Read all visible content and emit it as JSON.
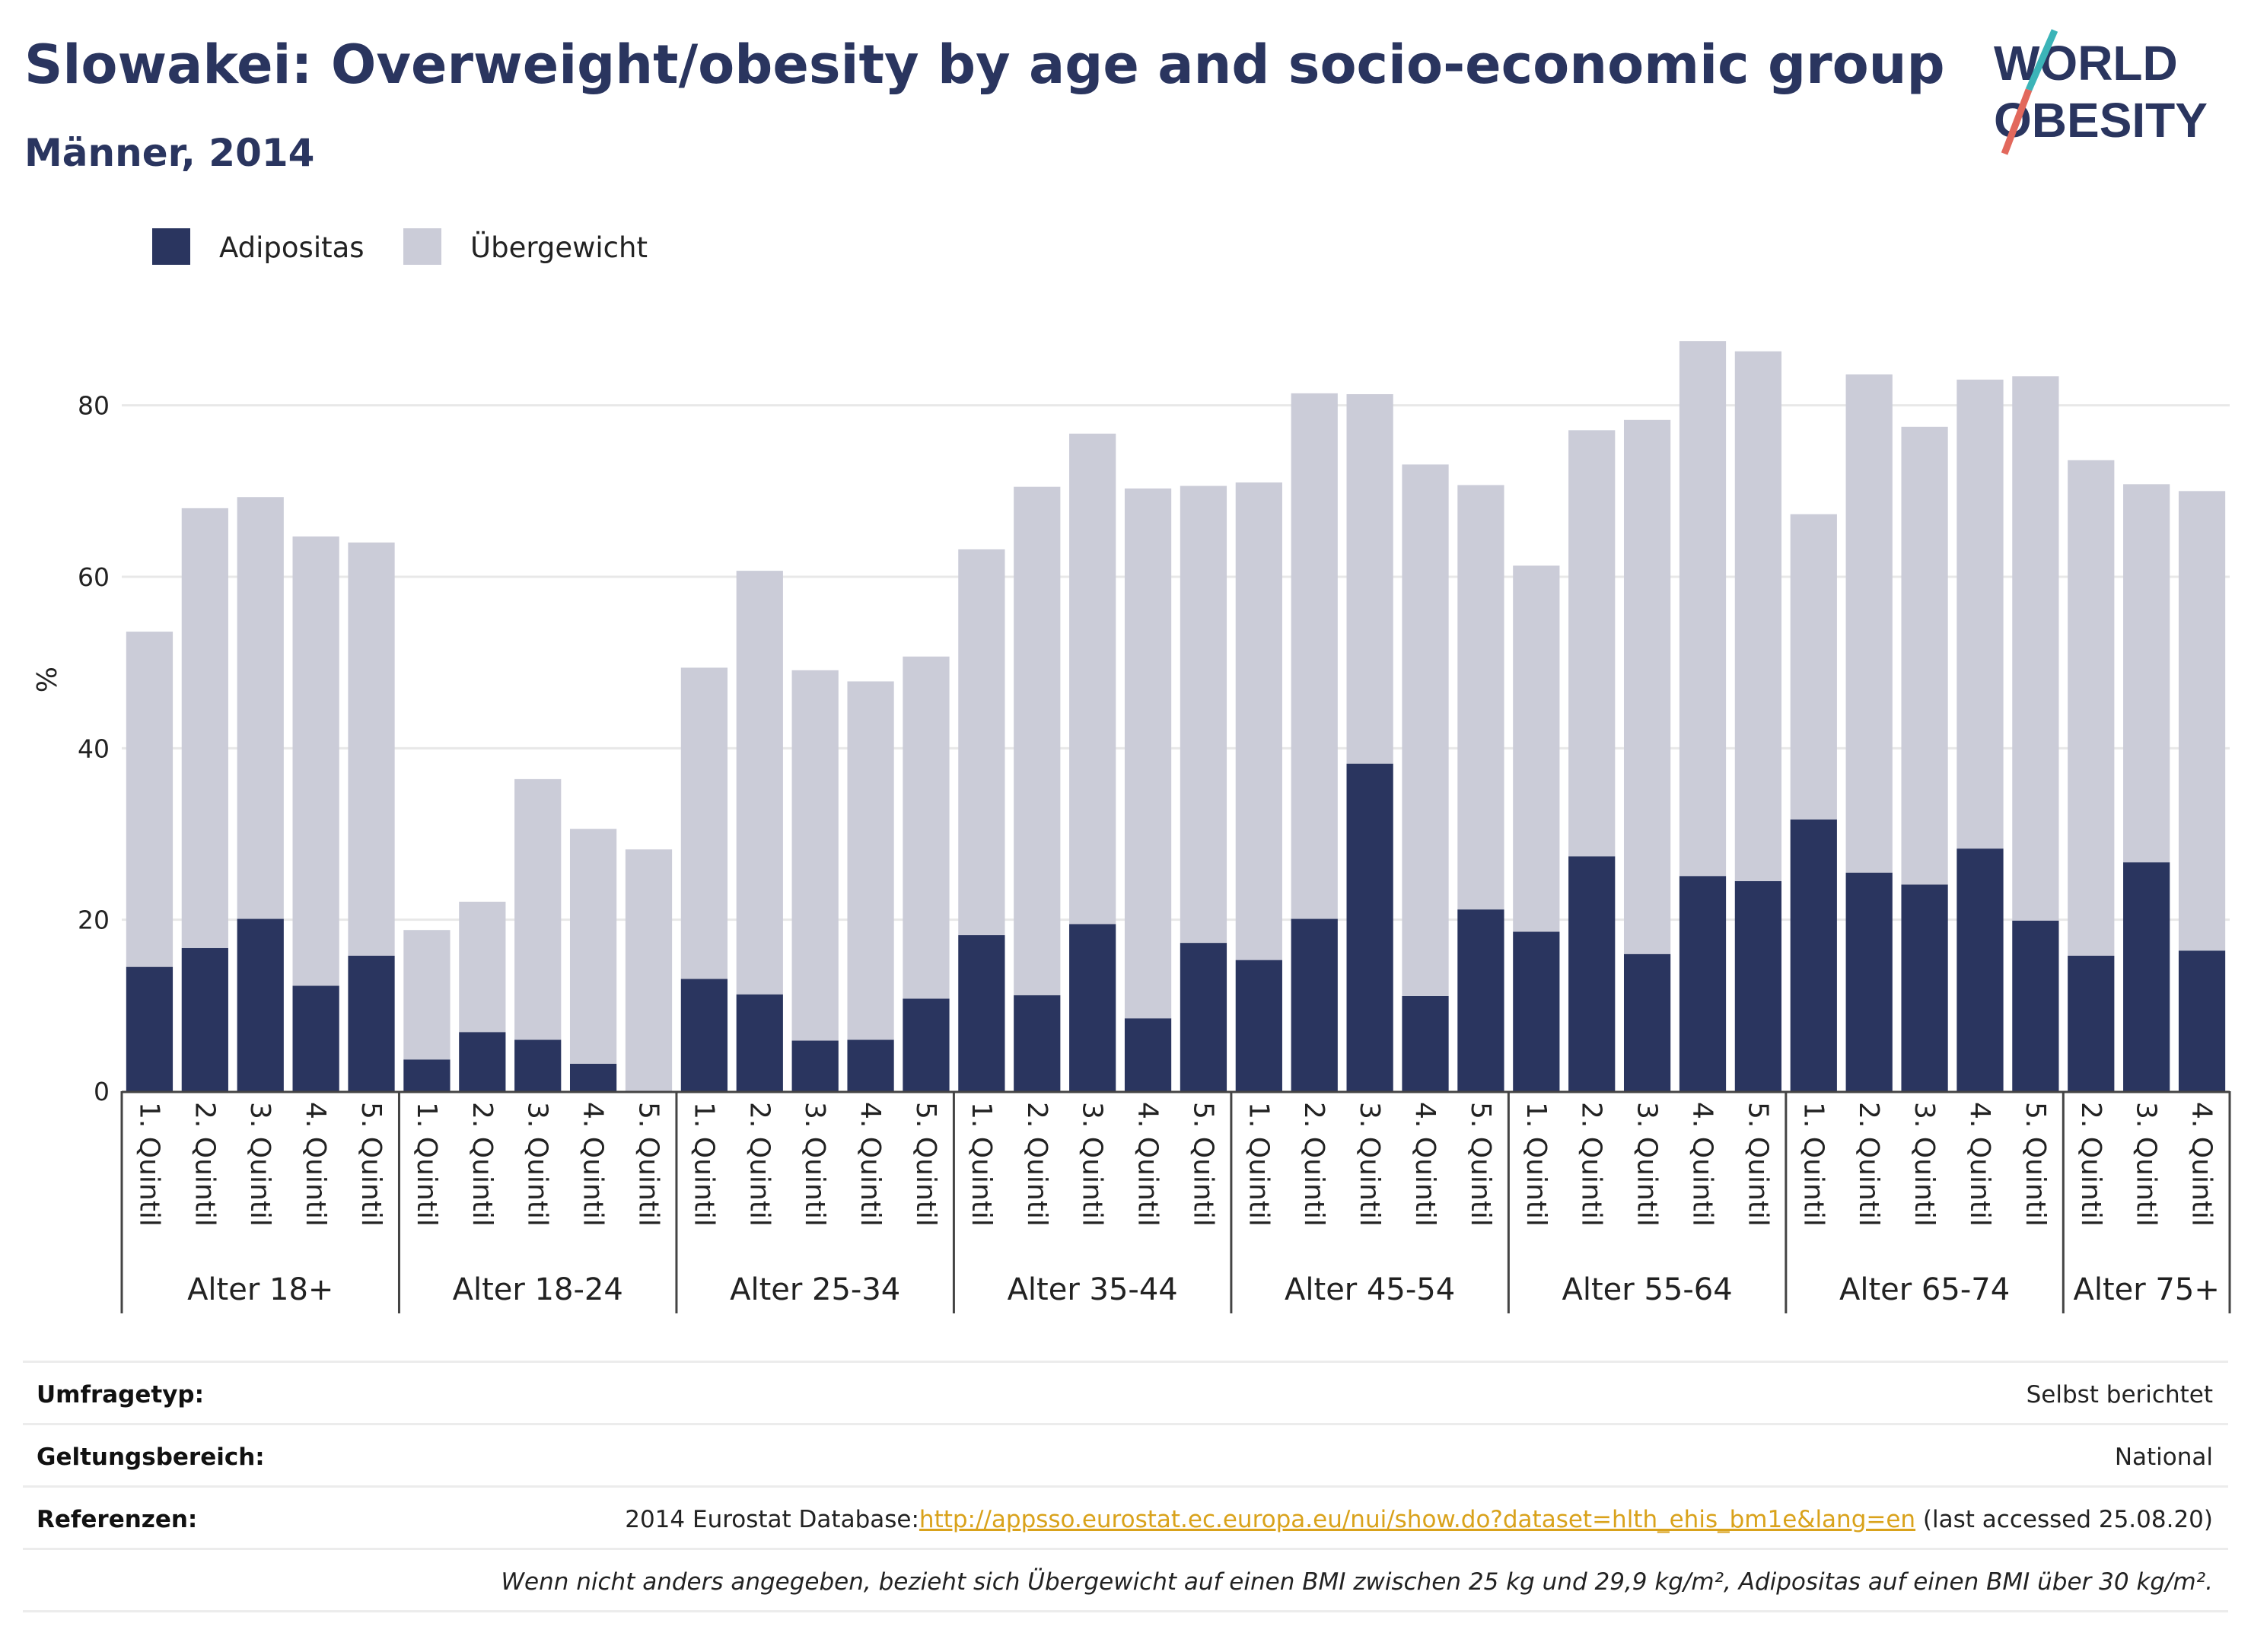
{
  "header": {
    "title": "Slowakei: Overweight/obesity by age and socio-economic group",
    "subtitle": "Männer, 2014"
  },
  "logo": {
    "line1": "WORLD",
    "line2": "OBESITY"
  },
  "colors": {
    "obesity": "#2a355f",
    "overweight": "#cbccd8",
    "accent_teal": "#3bb4b8",
    "accent_red": "#e2685c"
  },
  "chart_data": {
    "type": "bar",
    "stacked": true,
    "ylabel": "%",
    "ylim": [
      0,
      90
    ],
    "yticks": [
      0,
      20,
      40,
      60,
      80
    ],
    "grid": true,
    "legend_position": "top-left",
    "series": [
      {
        "name": "Adipositas",
        "values": [
          14.5,
          16.7,
          20.1,
          12.3,
          15.8,
          3.7,
          6.9,
          6.0,
          3.2,
          0,
          13.1,
          11.3,
          5.9,
          6.0,
          10.8,
          18.2,
          11.2,
          19.5,
          8.5,
          17.3,
          15.3,
          20.1,
          38.2,
          11.1,
          21.2,
          18.6,
          27.4,
          16.0,
          25.1,
          24.5,
          31.7,
          25.5,
          24.1,
          28.3,
          19.9,
          15.8,
          26.7,
          16.4
        ]
      },
      {
        "name": "Übergewicht",
        "values": [
          39.1,
          51.3,
          49.2,
          52.4,
          48.2,
          15.1,
          15.2,
          30.4,
          27.4,
          28.2,
          36.3,
          49.4,
          43.2,
          41.8,
          39.9,
          45.0,
          59.3,
          57.2,
          61.8,
          53.3,
          55.7,
          61.3,
          43.1,
          62.0,
          49.5,
          42.7,
          49.7,
          62.3,
          62.4,
          61.8,
          35.6,
          58.1,
          53.4,
          54.7,
          63.5,
          57.8,
          44.1,
          53.6
        ]
      }
    ],
    "categories": [
      "1. Quintil",
      "2. Quintil",
      "3. Quintil",
      "4. Quintil",
      "5. Quintil",
      "1. Quintil",
      "2. Quintil",
      "3. Quintil",
      "4. Quintil",
      "5. Quintil",
      "1. Quintil",
      "2. Quintil",
      "3. Quintil",
      "4. Quintil",
      "5. Quintil",
      "1. Quintil",
      "2. Quintil",
      "3. Quintil",
      "4. Quintil",
      "5. Quintil",
      "1. Quintil",
      "2. Quintil",
      "3. Quintil",
      "4. Quintil",
      "5. Quintil",
      "1. Quintil",
      "2. Quintil",
      "3. Quintil",
      "4. Quintil",
      "5. Quintil",
      "1. Quintil",
      "2. Quintil",
      "3. Quintil",
      "4. Quintil",
      "5. Quintil",
      "2. Quintil",
      "3. Quintil",
      "4. Quintil"
    ],
    "groups": [
      {
        "label": "Alter 18+",
        "count": 5
      },
      {
        "label": "Alter 18-24",
        "count": 5
      },
      {
        "label": "Alter 25-34",
        "count": 5
      },
      {
        "label": "Alter 35-44",
        "count": 5
      },
      {
        "label": "Alter 45-54",
        "count": 5
      },
      {
        "label": "Alter 55-64",
        "count": 5
      },
      {
        "label": "Alter 65-74",
        "count": 5
      },
      {
        "label": "Alter 75+",
        "count": 3
      }
    ]
  },
  "footer": {
    "survey_label": "Umfragetyp:",
    "survey_value": "Selbst berichtet",
    "scope_label": "Geltungsbereich:",
    "scope_value": "National",
    "ref_label": "Referenzen:",
    "ref_prefix": "2014 Eurostat Database:",
    "ref_link": "http://appsso.eurostat.ec.europa.eu/nui/show.do?dataset=hlth_ehis_bm1e&lang=en",
    "ref_suffix": " (last accessed 25.08.20)",
    "note": "Wenn nicht anders angegeben, bezieht sich Übergewicht auf einen BMI zwischen 25 kg und 29,9 kg/m², Adipositas auf einen BMI über 30 kg/m²."
  }
}
